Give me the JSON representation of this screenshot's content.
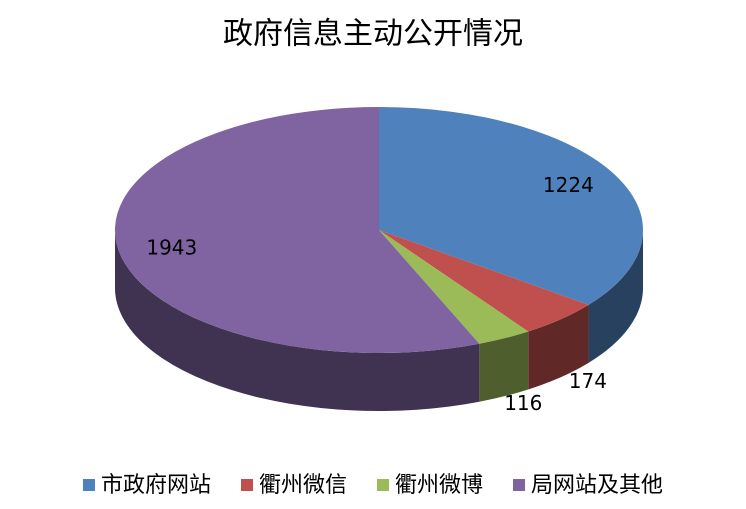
{
  "chart_data": {
    "type": "pie",
    "title": "政府信息主动公开情况",
    "categories": [
      "市政府网站",
      "衢州微信",
      "衢州微博",
      "局网站及其他"
    ],
    "values": [
      1224,
      174,
      116,
      1943
    ],
    "colors": [
      "#4f81bd",
      "#c0504d",
      "#9bbb59",
      "#8064a2"
    ],
    "legend": "bottom"
  }
}
